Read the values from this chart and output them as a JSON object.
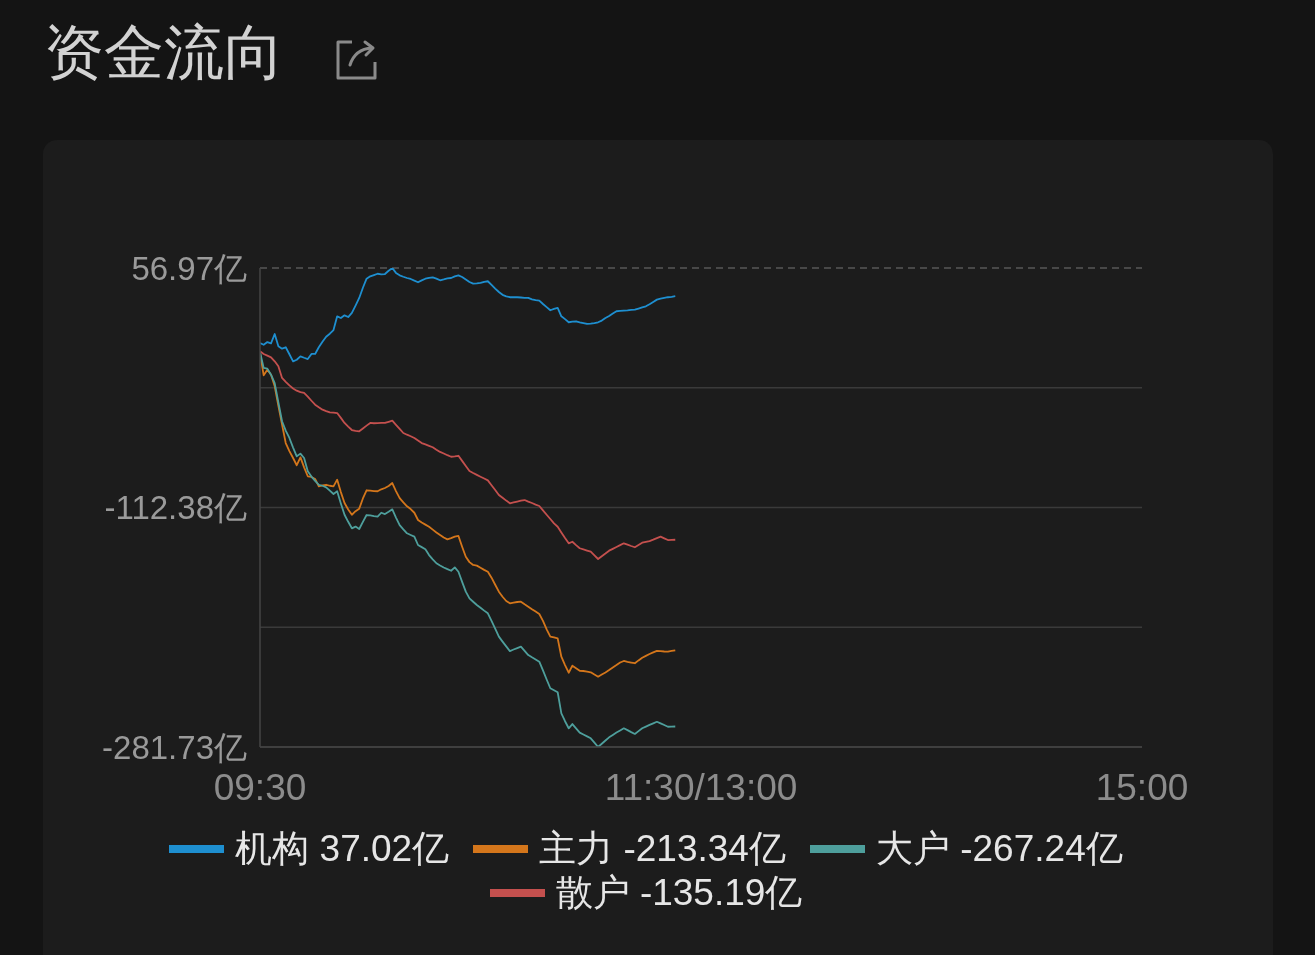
{
  "chart_data": {
    "type": "line",
    "title": "资金流向",
    "categories": [
      "09:30",
      null,
      null,
      null,
      null,
      null,
      null,
      null,
      null,
      null,
      null,
      null,
      null,
      null,
      null,
      null,
      null,
      null,
      null,
      null,
      null,
      null,
      null,
      null,
      null,
      null,
      null,
      null,
      null,
      null,
      null,
      null,
      null,
      null,
      null,
      null,
      null,
      null,
      null,
      null,
      null,
      null,
      null,
      null,
      null,
      null,
      null,
      null,
      null,
      null,
      null,
      null,
      null,
      null,
      null,
      null,
      null,
      null,
      null,
      null,
      null,
      null,
      null,
      null,
      null,
      null,
      null,
      null,
      null,
      null,
      null,
      null,
      null,
      null,
      null,
      null,
      null,
      null,
      null,
      null,
      null,
      null,
      null,
      null,
      null,
      null,
      null,
      null,
      null,
      null,
      null,
      null,
      null,
      null,
      null,
      null,
      null,
      null,
      null,
      null,
      null,
      null,
      null,
      null,
      null,
      null,
      null,
      null,
      null,
      null,
      null,
      null,
      null,
      null,
      null,
      null,
      null,
      null,
      null,
      null,
      "11:30/13:00",
      null,
      null,
      null,
      null,
      null,
      null,
      null,
      null,
      null,
      null,
      null,
      null,
      null,
      null,
      null,
      null,
      null,
      null,
      null,
      null,
      null,
      null,
      null,
      null,
      null,
      null,
      null,
      null,
      null,
      null,
      null,
      null,
      null,
      null,
      null,
      null,
      null,
      null,
      null,
      null,
      null,
      null,
      null,
      null,
      null,
      null,
      null,
      null,
      null,
      null,
      null,
      null,
      null,
      null,
      null,
      null,
      null,
      null,
      null,
      null,
      null,
      null,
      null,
      null,
      null,
      null,
      null,
      null,
      null,
      null,
      null,
      null,
      null,
      null,
      null,
      null,
      null,
      null,
      null,
      null,
      null,
      null,
      null,
      null,
      null,
      null,
      null,
      null,
      null,
      null,
      null,
      null,
      null,
      null,
      null,
      null,
      null,
      null,
      null,
      null,
      null,
      null,
      null,
      null,
      null,
      null,
      null,
      null,
      null,
      null,
      null,
      null,
      null,
      null,
      null,
      null,
      null,
      null,
      null,
      "15:00"
    ],
    "ylim": [
      -281.73,
      56.97
    ],
    "yticks": [
      {
        "value": -281.73,
        "label": "-281.73亿"
      },
      {
        "value": -197.055,
        "label": null
      },
      {
        "value": -112.38,
        "label": "-112.38亿"
      },
      {
        "value": -27.705,
        "label": null
      },
      {
        "value": 56.97,
        "label": "56.97亿"
      }
    ],
    "grid": "y",
    "legend": "bottom",
    "series": [
      {
        "name": "机构 37.02亿",
        "color": "#1e8fd0",
        "values": [
          3.9,
          2.7,
          4.6,
          3.7,
          10.3,
          1.6,
          -0.1,
          0.9,
          -4.0,
          -9.0,
          -7.9,
          -5.5,
          -6.5,
          -7.4,
          -3.8,
          -3.8,
          0.9,
          4.8,
          8.4,
          10.5,
          13.1,
          22.8,
          21.6,
          23.5,
          22.3,
          25.2,
          30.4,
          35.8,
          43.0,
          49.4,
          51.1,
          52.0,
          52.9,
          52.5,
          52.7,
          55.0,
          56.97,
          53.5,
          51.8,
          50.8,
          49.9,
          49.2,
          48.0,
          46.9,
          48.2,
          49.4,
          50.0,
          50.4,
          49.5,
          48.3,
          48.9,
          49.6,
          49.9,
          51.0,
          51.8,
          50.6,
          48.9,
          47.1,
          45.9,
          46.1,
          46.4,
          47.2,
          47.6,
          45.0,
          42.4,
          40.0,
          38.0,
          36.9,
          36.3,
          36.4,
          36.3,
          36.1,
          35.9,
          35.8,
          34.8,
          34.2,
          33.9,
          31.5,
          29.3,
          27.1,
          28.0,
          28.7,
          22.8,
          20.8,
          18.6,
          19.0,
          19.3,
          18.6,
          18.0,
          17.4,
          17.6,
          18.0,
          18.6,
          19.8,
          21.6,
          23.0,
          24.8,
          26.4,
          26.6,
          26.8,
          27.0,
          27.3,
          27.5,
          28.3,
          29.1,
          29.9,
          31.4,
          33.0,
          34.6,
          35.3,
          35.8,
          36.3,
          36.6,
          37.02,
          null,
          null,
          null,
          null,
          null,
          null,
          null,
          null,
          null,
          null,
          null,
          null,
          null,
          null,
          null,
          null,
          null,
          null,
          null,
          null,
          null,
          null,
          null,
          null,
          null,
          null,
          null,
          null,
          null,
          null,
          null,
          null,
          null,
          null,
          null,
          null,
          null,
          null,
          null,
          null,
          null,
          null,
          null,
          null,
          null,
          null,
          null,
          null,
          null,
          null,
          null,
          null,
          null,
          null,
          null,
          null,
          null,
          null,
          null,
          null,
          null,
          null,
          null,
          null,
          null,
          null,
          null,
          null,
          null,
          null,
          null,
          null,
          null,
          null,
          null,
          null,
          null,
          null,
          null,
          null,
          null,
          null,
          null,
          null,
          null,
          null,
          null,
          null,
          null,
          null,
          null,
          null,
          null,
          null,
          null,
          null,
          null,
          null,
          null,
          null,
          null,
          null,
          null,
          null,
          null,
          null,
          null,
          null,
          null,
          null,
          null,
          null,
          null,
          null,
          null,
          null,
          null,
          null,
          null,
          null,
          null,
          null,
          null,
          null,
          null,
          null,
          null
        ]
      },
      {
        "name": "主力 -213.34亿",
        "color": "#d4761b",
        "values": [
          -3.1,
          -18.9,
          -14.9,
          -18.5,
          -26.7,
          -40.5,
          -53.8,
          -66.8,
          -72.5,
          -77.4,
          -82.5,
          -76.9,
          -84.0,
          -90.3,
          -90.8,
          -92.2,
          -97.4,
          -96.8,
          -96.3,
          -97.0,
          -97.4,
          -92.7,
          -101.5,
          -109.2,
          -113.8,
          -117.5,
          -115.0,
          -113.2,
          -106.0,
          -100.2,
          -100.4,
          -100.8,
          -100.9,
          -99.5,
          -98.6,
          -97.2,
          -95.1,
          -100.8,
          -105.7,
          -108.8,
          -111.5,
          -113.5,
          -116.1,
          -121.2,
          -123.0,
          -124.5,
          -126.0,
          -128.0,
          -130.0,
          -131.8,
          -133.6,
          -134.9,
          -134.0,
          -133.0,
          -132.5,
          -140.1,
          -147.2,
          -151.0,
          -153.0,
          -153.5,
          -155.0,
          -156.5,
          -157.8,
          -162.0,
          -167.0,
          -171.9,
          -175.5,
          -178.5,
          -180.1,
          -179.6,
          -179.2,
          -179.0,
          -180.8,
          -182.5,
          -184.3,
          -186.0,
          -187.7,
          -192.5,
          -198.5,
          -203.7,
          -204.3,
          -204.9,
          -217.9,
          -223.8,
          -229.2,
          -224.2,
          -226.0,
          -227.8,
          -228.0,
          -228.4,
          -228.9,
          -230.5,
          -232.0,
          -230.5,
          -229.0,
          -227.3,
          -225.5,
          -223.8,
          -222.0,
          -220.9,
          -221.5,
          -222.0,
          -222.5,
          -220.5,
          -218.6,
          -217.3,
          -216.0,
          -214.8,
          -213.8,
          -214.0,
          -214.2,
          -214.3,
          -213.8,
          -213.34,
          null,
          null,
          null,
          null,
          null,
          null,
          null,
          null,
          null,
          null,
          null,
          null,
          null,
          null,
          null,
          null,
          null,
          null,
          null,
          null,
          null,
          null,
          null,
          null,
          null,
          null,
          null,
          null,
          null,
          null,
          null,
          null,
          null,
          null,
          null,
          null,
          null,
          null,
          null,
          null,
          null,
          null,
          null,
          null,
          null,
          null,
          null,
          null,
          null,
          null,
          null,
          null,
          null,
          null,
          null,
          null,
          null,
          null,
          null,
          null,
          null,
          null,
          null,
          null,
          null,
          null,
          null,
          null,
          null,
          null,
          null,
          null,
          null,
          null,
          null,
          null,
          null,
          null,
          null,
          null,
          null,
          null,
          null,
          null,
          null,
          null,
          null,
          null,
          null,
          null,
          null,
          null,
          null,
          null,
          null,
          null,
          null,
          null,
          null,
          null,
          null,
          null,
          null,
          null,
          null,
          null,
          null,
          null,
          null,
          null,
          null,
          null,
          null,
          null,
          null,
          null,
          null,
          null,
          null,
          null,
          null,
          null,
          null,
          null,
          null,
          null,
          null
        ]
      },
      {
        "name": "大户 -267.24亿",
        "color": "#4e9f9c",
        "values": [
          -2.4,
          -13.7,
          -14.2,
          -18.5,
          -24.4,
          -38.0,
          -51.4,
          -58.0,
          -63.2,
          -70.0,
          -76.2,
          -74.3,
          -77.4,
          -86.8,
          -90.5,
          -93.5,
          -96.3,
          -97.0,
          -98.1,
          -100.5,
          -102.8,
          -100.9,
          -109.5,
          -117.5,
          -122.5,
          -127.1,
          -125.9,
          -127.6,
          -122.5,
          -117.7,
          -118.0,
          -118.5,
          -118.9,
          -116.1,
          -117.0,
          -115.4,
          -113.7,
          -119.5,
          -124.8,
          -127.8,
          -130.6,
          -131.8,
          -133.0,
          -138.9,
          -140.4,
          -141.9,
          -146.0,
          -149.0,
          -151.8,
          -153.4,
          -154.8,
          -156.0,
          -157.1,
          -154.7,
          -157.8,
          -165.0,
          -171.9,
          -176.6,
          -179.0,
          -181.3,
          -183.3,
          -185.3,
          -187.2,
          -192.5,
          -198.0,
          -203.7,
          -207.2,
          -210.6,
          -213.9,
          -212.8,
          -211.8,
          -210.8,
          -213.8,
          -216.7,
          -218.3,
          -219.8,
          -221.4,
          -227.5,
          -234.0,
          -240.2,
          -241.6,
          -243.0,
          -257.9,
          -263.5,
          -268.5,
          -265.5,
          -268.5,
          -271.6,
          -272.9,
          -274.2,
          -275.6,
          -278.6,
          -281.73,
          -279.4,
          -277.1,
          -274.9,
          -273.2,
          -271.5,
          -270.0,
          -268.5,
          -269.8,
          -271.2,
          -272.5,
          -270.5,
          -268.5,
          -267.3,
          -266.1,
          -265.0,
          -263.9,
          -265.0,
          -266.2,
          -267.4,
          -267.3,
          -267.24,
          null,
          null,
          null,
          null,
          null,
          null,
          null,
          null,
          null,
          null,
          null,
          null,
          null,
          null,
          null,
          null,
          null,
          null,
          null,
          null,
          null,
          null,
          null,
          null,
          null,
          null,
          null,
          null,
          null,
          null,
          null,
          null,
          null,
          null,
          null,
          null,
          null,
          null,
          null,
          null,
          null,
          null,
          null,
          null,
          null,
          null,
          null,
          null,
          null,
          null,
          null,
          null,
          null,
          null,
          null,
          null,
          null,
          null,
          null,
          null,
          null,
          null,
          null,
          null,
          null,
          null,
          null,
          null,
          null,
          null,
          null,
          null,
          null,
          null,
          null,
          null,
          null,
          null,
          null,
          null,
          null,
          null,
          null,
          null,
          null,
          null,
          null,
          null,
          null,
          null,
          null,
          null,
          null,
          null,
          null,
          null,
          null,
          null,
          null,
          null,
          null,
          null,
          null,
          null,
          null,
          null,
          null,
          null,
          null,
          null,
          null,
          null,
          null,
          null,
          null,
          null,
          null,
          null,
          null,
          null,
          null,
          null,
          null,
          null,
          null,
          null,
          null
        ]
      },
      {
        "name": "散户 -135.19亿",
        "color": "#c4504e",
        "values": [
          -1.9,
          -3.8,
          -5.0,
          -6.2,
          -9.0,
          -12.5,
          -20.8,
          -23.5,
          -26.0,
          -28.2,
          -29.8,
          -30.8,
          -31.4,
          -34.0,
          -36.9,
          -39.7,
          -41.5,
          -43.2,
          -44.2,
          -45.1,
          -45.3,
          -45.6,
          -49.0,
          -52.6,
          -55.2,
          -57.6,
          -58.2,
          -58.5,
          -56.5,
          -54.5,
          -52.6,
          -52.8,
          -52.7,
          -52.6,
          -52.6,
          -51.8,
          -51.0,
          -53.9,
          -56.8,
          -59.7,
          -60.9,
          -62.0,
          -63.2,
          -65.0,
          -66.8,
          -67.8,
          -68.8,
          -69.8,
          -71.5,
          -73.1,
          -74.2,
          -75.4,
          -76.5,
          -76.2,
          -75.8,
          -79.4,
          -83.0,
          -86.6,
          -88.0,
          -89.3,
          -90.6,
          -91.9,
          -93.2,
          -96.6,
          -100.0,
          -103.5,
          -105.5,
          -107.5,
          -109.4,
          -108.8,
          -108.2,
          -107.6,
          -107.1,
          -108.2,
          -109.2,
          -110.3,
          -111.3,
          -114.4,
          -117.5,
          -120.5,
          -123.6,
          -126.0,
          -130.0,
          -134.0,
          -137.7,
          -136.6,
          -139.0,
          -141.2,
          -142.0,
          -142.8,
          -143.6,
          -146.2,
          -148.8,
          -146.8,
          -144.9,
          -142.9,
          -141.6,
          -140.3,
          -139.0,
          -137.7,
          -138.6,
          -139.6,
          -140.5,
          -138.9,
          -137.3,
          -136.7,
          -136.1,
          -135.1,
          -134.0,
          -133.0,
          -134.2,
          -135.4,
          -135.3,
          -135.19,
          null,
          null,
          null,
          null,
          null,
          null,
          null,
          null,
          null,
          null,
          null,
          null,
          null,
          null,
          null,
          null,
          null,
          null,
          null,
          null,
          null,
          null,
          null,
          null,
          null,
          null,
          null,
          null,
          null,
          null,
          null,
          null,
          null,
          null,
          null,
          null,
          null,
          null,
          null,
          null,
          null,
          null,
          null,
          null,
          null,
          null,
          null,
          null,
          null,
          null,
          null,
          null,
          null,
          null,
          null,
          null,
          null,
          null,
          null,
          null,
          null,
          null,
          null,
          null,
          null,
          null,
          null,
          null,
          null,
          null,
          null,
          null,
          null,
          null,
          null,
          null,
          null,
          null,
          null,
          null,
          null,
          null,
          null,
          null,
          null,
          null,
          null,
          null,
          null,
          null,
          null,
          null,
          null,
          null,
          null,
          null,
          null,
          null,
          null,
          null,
          null,
          null,
          null,
          null,
          null,
          null,
          null,
          null,
          null,
          null,
          null,
          null,
          null,
          null,
          null,
          null,
          null,
          null,
          null,
          null,
          null,
          null,
          null,
          null,
          null,
          null,
          null
        ]
      }
    ]
  }
}
